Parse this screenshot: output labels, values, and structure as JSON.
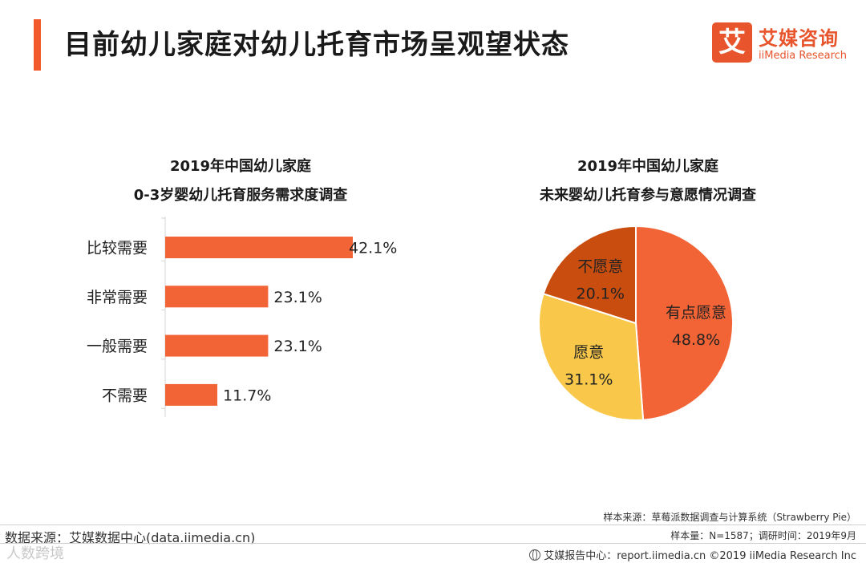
{
  "header": {
    "title": "目前幼儿家庭对幼儿托育市场呈观望状态",
    "logo_mark": "艾",
    "logo_cn": "艾媒咨询",
    "logo_en": "iiMedia Research",
    "accent_color": "#f25a2b"
  },
  "chart_data": [
    {
      "type": "bar",
      "orientation": "horizontal",
      "title_line1": "2019年中国幼儿家庭",
      "title_line2": "0-3岁婴幼儿托育服务需求度调查",
      "categories": [
        "比较需要",
        "非常需要",
        "一般需要",
        "不需要"
      ],
      "values": [
        42.1,
        23.1,
        23.1,
        11.7
      ],
      "labels": [
        "42.1%",
        "23.1%",
        "23.1%",
        "11.7%"
      ],
      "bar_color": "#f26335",
      "xlim": [
        0,
        42.1
      ],
      "grid": false
    },
    {
      "type": "pie",
      "title_line1": "2019年中国幼儿家庭",
      "title_line2": "未来婴幼儿托育参与意愿情况调查",
      "slices": [
        {
          "label": "有点愿意",
          "value": 48.8,
          "value_label": "48.8%",
          "color": "#f26335"
        },
        {
          "label": "愿意",
          "value": 31.1,
          "value_label": "31.1%",
          "color": "#f9c84a"
        },
        {
          "label": "不愿意",
          "value": 20.1,
          "value_label": "20.1%",
          "color": "#c94d0e"
        }
      ]
    }
  ],
  "footer": {
    "source_left": "数据来源：艾媒数据中心(data.iimedia.cn)",
    "sample_source": "样本来源：草莓派数据调查与计算系统（Strawberry Pie）",
    "sample_info": "样本量：N=1587；调研时间：2019年9月",
    "report_center": "艾媒报告中心：report.iimedia.cn  ©2019  iiMedia Research  Inc",
    "watermark": "人数跨境"
  }
}
